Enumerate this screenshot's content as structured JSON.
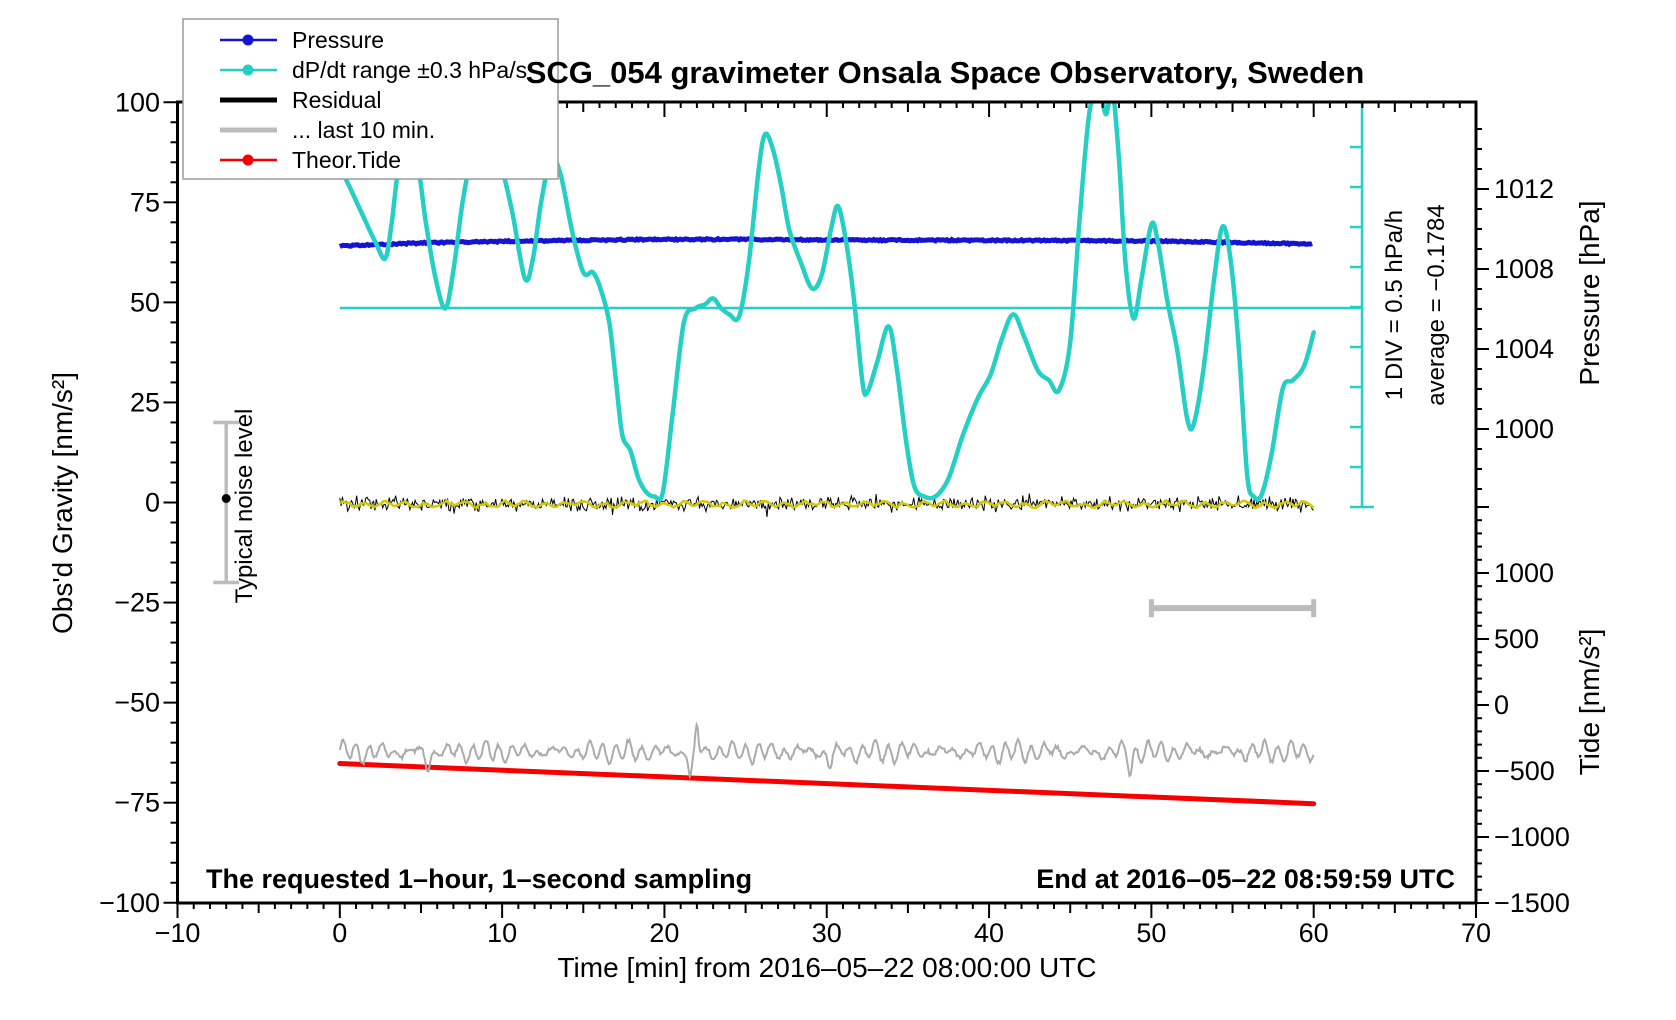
{
  "chart_data": {
    "type": "line",
    "title": "SCG_054 gravimeter Onsala Space Observatory, Sweden",
    "xlabel": "Time [min] from 2016–05–22 08:00:00 UTC",
    "x_range": [
      -10,
      70
    ],
    "x_major_values": [
      -10,
      0,
      10,
      20,
      30,
      40,
      50,
      60,
      70
    ],
    "x_major_labels": [
      "−10",
      "0",
      "10",
      "20",
      "30",
      "40",
      "50",
      "60",
      "70"
    ],
    "x_minor_step": 1,
    "grid": "off",
    "left_axis": {
      "label": "Obs'd Gravity [nm/s²]",
      "range": [
        -100,
        100
      ],
      "major_values": [
        -100,
        -75,
        -50,
        -25,
        0,
        25,
        50,
        75,
        100
      ],
      "major_labels": [
        "−100",
        "−75",
        "−50",
        "−25",
        "0",
        "25",
        "50",
        "75",
        "100"
      ],
      "minor_step": 5
    },
    "right_pressure_axis": {
      "label": "Pressure [hPa]",
      "major_values": [
        1000,
        1004,
        1008,
        1012
      ],
      "major_labels": [
        "1000",
        "1004",
        "1008",
        "1012"
      ],
      "minor_step": 1,
      "minor_range": [
        997,
        1015
      ]
    },
    "right_tide_axis": {
      "label": "Tide [nm/s²]",
      "major_values": [
        -1500,
        -1000,
        -500,
        0,
        500,
        1000
      ],
      "major_labels": [
        "−1500",
        "−1000",
        "−500",
        "0",
        "500",
        "1000"
      ],
      "minor_step": 100,
      "minor_range": [
        -1500,
        1500
      ]
    },
    "legend": {
      "position": "top-left",
      "entries": [
        {
          "label": "Pressure",
          "color": "#1414d2",
          "marker": "dot-line",
          "weight": "thin"
        },
        {
          "label": "dP/dt range ±0.3 hPa/s",
          "color": "#25cfc3",
          "marker": "dot-line",
          "weight": "thin"
        },
        {
          "label": "Residual",
          "color": "#000000",
          "marker": "line",
          "weight": "thick"
        },
        {
          "label": "... last 10 min.",
          "color": "#bcbcbc",
          "marker": "line",
          "weight": "thick"
        },
        {
          "label": "Theor.Tide",
          "color": "#f60000",
          "marker": "dot-line",
          "weight": "thin"
        }
      ]
    },
    "annotations": {
      "div_label": "1 DIV = 0.5 hPa/h",
      "average_label": "average = −0.1784",
      "noise_label": "Typical noise level",
      "sampling_label": "The requested 1–hour, 1–second sampling",
      "end_label": "End at 2016–05–22 08:59:59 UTC"
    },
    "series": {
      "pressure_hPa": {
        "name": "Pressure",
        "x_min": [
          0,
          5,
          10,
          15,
          20,
          25,
          30,
          35,
          40,
          45,
          50,
          55,
          60
        ],
        "values": [
          1009.15,
          1009.3,
          1009.38,
          1009.44,
          1009.48,
          1009.48,
          1009.46,
          1009.44,
          1009.43,
          1009.42,
          1009.4,
          1009.33,
          1009.25
        ]
      },
      "dpdt": {
        "name": "dP/dt range ±0.3 hPa/s",
        "units_note": "plotted against gravity axis; 10 gravity units = 1 DIV = 0.5 hPa/h",
        "reference_level_gravity": 48.6,
        "average_hPa_per_h": -0.1784,
        "points": [
          [
            0.0,
            84
          ],
          [
            0.7,
            78
          ],
          [
            1.5,
            71
          ],
          [
            2.2,
            65
          ],
          [
            2.8,
            61
          ],
          [
            3.2,
            70
          ],
          [
            3.6,
            83
          ],
          [
            4.1,
            88
          ],
          [
            4.7,
            87
          ],
          [
            5.3,
            70
          ],
          [
            5.9,
            56
          ],
          [
            6.5,
            48.5
          ],
          [
            7.0,
            58
          ],
          [
            7.6,
            76
          ],
          [
            8.2,
            87
          ],
          [
            9.0,
            91
          ],
          [
            9.8,
            86
          ],
          [
            10.6,
            73
          ],
          [
            11.4,
            56
          ],
          [
            11.9,
            61
          ],
          [
            12.4,
            75
          ],
          [
            13.0,
            86
          ],
          [
            13.6,
            82
          ],
          [
            14.3,
            68
          ],
          [
            15.0,
            57.5
          ],
          [
            15.6,
            57.5
          ],
          [
            16.1,
            53
          ],
          [
            16.6,
            45
          ],
          [
            17.0,
            31
          ],
          [
            17.4,
            17
          ],
          [
            17.9,
            13
          ],
          [
            18.4,
            6
          ],
          [
            18.9,
            2.5
          ],
          [
            19.4,
            1.5
          ],
          [
            19.9,
            2.5
          ],
          [
            20.5,
            22
          ],
          [
            21.2,
            45
          ],
          [
            21.9,
            48.5
          ],
          [
            22.5,
            49.5
          ],
          [
            23.0,
            51
          ],
          [
            23.5,
            48.5
          ],
          [
            24.0,
            47
          ],
          [
            24.6,
            46.5
          ],
          [
            25.2,
            60
          ],
          [
            25.8,
            83
          ],
          [
            26.2,
            92
          ],
          [
            26.7,
            88
          ],
          [
            27.2,
            79
          ],
          [
            27.7,
            68
          ],
          [
            28.4,
            60
          ],
          [
            29.1,
            53.5
          ],
          [
            29.7,
            57
          ],
          [
            30.3,
            69
          ],
          [
            30.7,
            74
          ],
          [
            31.2,
            65
          ],
          [
            31.7,
            50
          ],
          [
            32.2,
            30
          ],
          [
            32.5,
            27.5
          ],
          [
            33.1,
            35
          ],
          [
            33.8,
            44
          ],
          [
            34.3,
            34
          ],
          [
            34.9,
            15
          ],
          [
            35.4,
            4
          ],
          [
            36.0,
            1.5
          ],
          [
            36.7,
            1.5
          ],
          [
            37.5,
            6
          ],
          [
            38.4,
            17
          ],
          [
            39.3,
            26
          ],
          [
            40.1,
            32
          ],
          [
            40.8,
            41
          ],
          [
            41.5,
            47
          ],
          [
            42.2,
            41
          ],
          [
            43.0,
            33
          ],
          [
            43.7,
            30.5
          ],
          [
            44.3,
            28
          ],
          [
            45.0,
            40
          ],
          [
            45.6,
            72
          ],
          [
            46.2,
            98
          ],
          [
            46.8,
            103
          ],
          [
            47.2,
            97
          ],
          [
            47.6,
            103
          ],
          [
            48.0,
            86
          ],
          [
            48.4,
            60
          ],
          [
            48.9,
            46
          ],
          [
            49.4,
            56
          ],
          [
            50.0,
            69.5
          ],
          [
            50.4,
            65
          ],
          [
            51.0,
            50
          ],
          [
            51.6,
            38
          ],
          [
            52.2,
            21
          ],
          [
            52.6,
            19.5
          ],
          [
            53.2,
            33
          ],
          [
            53.9,
            57
          ],
          [
            54.4,
            69
          ],
          [
            54.9,
            60
          ],
          [
            55.4,
            38
          ],
          [
            55.9,
            7
          ],
          [
            56.3,
            1.5
          ],
          [
            56.8,
            2
          ],
          [
            57.4,
            12
          ],
          [
            58.1,
            28.5
          ],
          [
            58.7,
            30.5
          ],
          [
            59.4,
            34
          ],
          [
            60.0,
            42.5
          ]
        ]
      },
      "residual": {
        "name": "Residual",
        "mean": -0.4,
        "sigma": 1.15,
        "spike_rate": 0.012,
        "spike_amp": 4.2,
        "seed": 42,
        "t_range": [
          0,
          60
        ]
      },
      "residual_smooth": {
        "name": "Residual smoothed",
        "color": "#d2c900",
        "mean": -0.45,
        "amp": 0.8
      },
      "last10_gray": {
        "name": "... last 10 min.",
        "center": -62.3,
        "amp": 1.9,
        "period_min": 0.8,
        "dips": [
          [
            5.4,
            -4.2
          ],
          [
            21.6,
            -6.2
          ],
          [
            30.2,
            -3.6
          ],
          [
            48.7,
            -4.2
          ]
        ],
        "spike": [
          22.0,
          6.2
        ],
        "t_range": [
          0,
          60
        ]
      },
      "theor_tide": {
        "name": "Theor.Tide",
        "x_min": [
          0,
          60
        ],
        "tide_values": [
          -443,
          -748
        ]
      }
    },
    "markers": {
      "noise_errorbar": {
        "t": -7.0,
        "center_gravity": 0,
        "half_range_gravity": 20
      },
      "last10_range_bar": {
        "t_start": 50,
        "t_end": 60,
        "gravity": -26.4
      },
      "dpdt_scale_bar": {
        "div_gravity_units": 10,
        "n_ticks": 9
      }
    },
    "colors": {
      "pressure": "#1414d2",
      "dpdt": "#25cfc3",
      "residual": "#000000",
      "residual_smooth": "#d2c900",
      "last10": "#ababab",
      "tide": "#f60000",
      "gray_marker": "#bcbcbc",
      "frame": "#000000",
      "background": "#ffffff"
    }
  }
}
